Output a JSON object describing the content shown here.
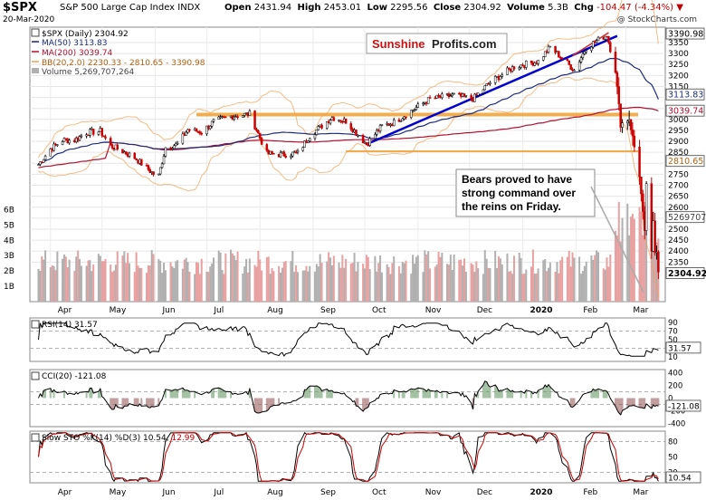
{
  "header": {
    "ticker": "$SPX",
    "name": "S&P 500 Large Cap Index",
    "exchange": "INDX",
    "date": "20-Mar-2020",
    "open_label": "Open",
    "open": "2431.94",
    "high_label": "High",
    "high": "2453.01",
    "low_label": "Low",
    "low": "2295.56",
    "close_label": "Close",
    "close": "2304.92",
    "volume_label": "Volume",
    "volume": "5.3B",
    "chg_label": "Chg",
    "chg": "-104.47 (-4.34%)",
    "credit": "@ StockCharts.com"
  },
  "legend": {
    "main": "$SPX (Daily) 2304.92",
    "ma50": "MA(50) 3113.83",
    "ma200": "MA(200) 3039.74",
    "bb": "BB(20,2.0) 2230.33 - 2810.65 - 3390.98",
    "volume": "Volume 5,269,707,264"
  },
  "watermark": {
    "part1": "Sunshine",
    "part2": "Profits.com"
  },
  "annotation": "Bears proved to have strong command over the reins on Friday.",
  "price_tags": {
    "bb_upper": "3390.98",
    "ma50": "3113.83",
    "ma200": "3039.74",
    "bb_mid": "2810.65",
    "volume": "5269707",
    "close": "2304.92"
  },
  "rsi_legend": "RSI(14) 31.57",
  "rsi_tag": "31.57",
  "cci_legend": "CCI(20) -121.08",
  "cci_tag": "-121.08",
  "sto_legend": "Slow STO %K(14) %D(3) 10.54,",
  "sto_legend_d": "12.99",
  "sto_tag": "10.54",
  "colors": {
    "ma50": "#1f2d7a",
    "ma200": "#b01030",
    "bb": "#f0a050",
    "trend": "#0000cc",
    "hline": "#f0a030",
    "up": "#000000",
    "down": "#cc0000",
    "vol_up": "#b0b0b0",
    "vol_down": "#e8a0a0"
  },
  "chart_data": {
    "type": "line",
    "title": "$SPX S&P 500 Large Cap Index",
    "price_axis": {
      "ticks": [
        3350,
        3300,
        3250,
        3200,
        3150,
        3100,
        3050,
        3000,
        2950,
        2900,
        2850,
        2800,
        2750,
        2700,
        2650,
        2600,
        2550,
        2500,
        2450,
        2400,
        2350
      ],
      "range": [
        2170,
        3420
      ]
    },
    "volume_axis": {
      "ticks": [
        "1B",
        "2B",
        "3B",
        "4B",
        "5B",
        "6B"
      ],
      "range": [
        0,
        6.5
      ]
    },
    "month_labels": [
      "Apr",
      "May",
      "Jun",
      "Jul",
      "Aug",
      "Sep",
      "Oct",
      "Nov",
      "Dec",
      "2020",
      "Feb",
      "Mar"
    ],
    "horizontal_levels": [
      {
        "name": "resistance 3022",
        "value": 3022
      },
      {
        "name": "support 2855",
        "value": 2855
      }
    ],
    "series": [
      {
        "name": "$SPX",
        "values": [
          {
            "x": "2019-03-25",
            "y": 2795
          },
          {
            "x": "2019-04-01",
            "y": 2865
          },
          {
            "x": "2019-04-08",
            "y": 2905
          },
          {
            "x": "2019-04-15",
            "y": 2905
          },
          {
            "x": "2019-04-22",
            "y": 2940
          },
          {
            "x": "2019-04-30",
            "y": 2946
          },
          {
            "x": "2019-05-06",
            "y": 2880
          },
          {
            "x": "2019-05-13",
            "y": 2855
          },
          {
            "x": "2019-05-20",
            "y": 2826
          },
          {
            "x": "2019-05-31",
            "y": 2752
          },
          {
            "x": "2019-06-03",
            "y": 2744
          },
          {
            "x": "2019-06-07",
            "y": 2873
          },
          {
            "x": "2019-06-14",
            "y": 2887
          },
          {
            "x": "2019-06-20",
            "y": 2954
          },
          {
            "x": "2019-06-28",
            "y": 2942
          },
          {
            "x": "2019-07-05",
            "y": 2990
          },
          {
            "x": "2019-07-15",
            "y": 3014
          },
          {
            "x": "2019-07-26",
            "y": 3025
          },
          {
            "x": "2019-08-05",
            "y": 2844
          },
          {
            "x": "2019-08-14",
            "y": 2840
          },
          {
            "x": "2019-08-23",
            "y": 2847
          },
          {
            "x": "2019-08-30",
            "y": 2926
          },
          {
            "x": "2019-09-12",
            "y": 3009
          },
          {
            "x": "2019-09-20",
            "y": 2992
          },
          {
            "x": "2019-10-02",
            "y": 2887
          },
          {
            "x": "2019-10-11",
            "y": 2970
          },
          {
            "x": "2019-10-18",
            "y": 2986
          },
          {
            "x": "2019-10-28",
            "y": 3039
          },
          {
            "x": "2019-11-08",
            "y": 3093
          },
          {
            "x": "2019-11-22",
            "y": 3110
          },
          {
            "x": "2019-12-03",
            "y": 3093
          },
          {
            "x": "2019-12-13",
            "y": 3169
          },
          {
            "x": "2019-12-27",
            "y": 3240
          },
          {
            "x": "2020-01-10",
            "y": 3265
          },
          {
            "x": "2020-01-17",
            "y": 3330
          },
          {
            "x": "2020-01-31",
            "y": 3225
          },
          {
            "x": "2020-02-07",
            "y": 3328
          },
          {
            "x": "2020-02-19",
            "y": 3386
          },
          {
            "x": "2020-02-24",
            "y": 3225
          },
          {
            "x": "2020-02-27",
            "y": 2978
          },
          {
            "x": "2020-03-03",
            "y": 3003
          },
          {
            "x": "2020-03-09",
            "y": 2746
          },
          {
            "x": "2020-03-12",
            "y": 2480
          },
          {
            "x": "2020-03-13",
            "y": 2711
          },
          {
            "x": "2020-03-16",
            "y": 2386
          },
          {
            "x": "2020-03-17",
            "y": 2529
          },
          {
            "x": "2020-03-18",
            "y": 2398
          },
          {
            "x": "2020-03-19",
            "y": 2409
          },
          {
            "x": "2020-03-20",
            "y": 2305
          }
        ]
      }
    ],
    "rsi": {
      "name": "RSI(14)",
      "last": 31.57,
      "ticks": [
        90,
        70,
        50,
        30,
        10
      ],
      "levels": [
        70,
        30
      ]
    },
    "cci": {
      "name": "CCI(20)",
      "last": -121.08,
      "ticks": [
        400,
        200,
        0,
        -200,
        -400
      ],
      "levels": [
        100,
        -100
      ]
    },
    "sto": {
      "name": "Slow STO %K(14) %D(3)",
      "k": 10.54,
      "d": 12.99,
      "ticks": [
        80,
        50,
        20
      ],
      "levels": [
        80,
        20
      ]
    }
  }
}
